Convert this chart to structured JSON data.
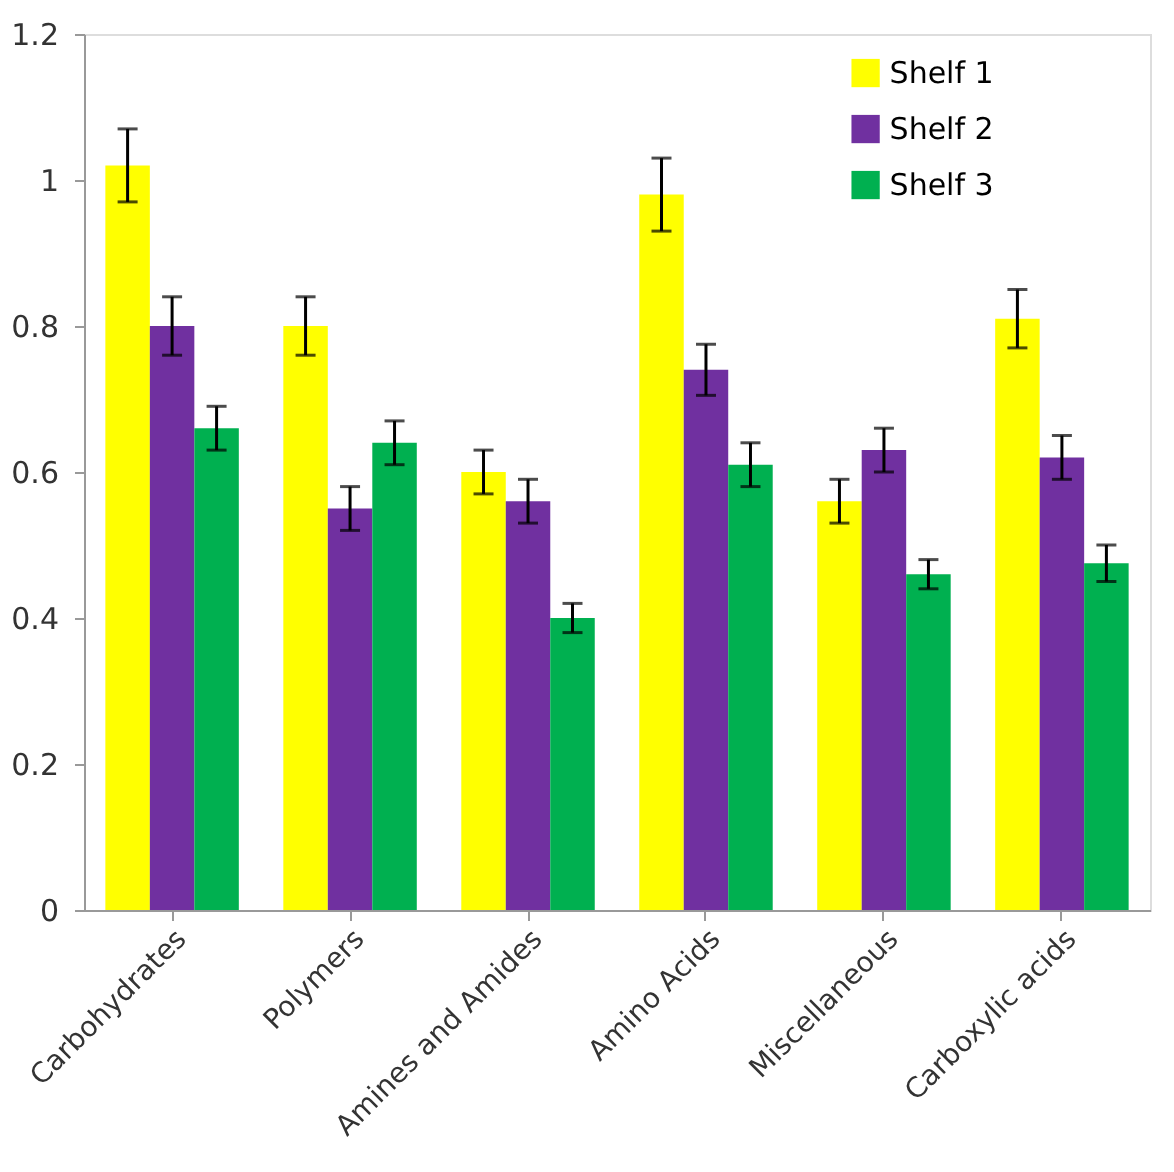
{
  "chart_data": {
    "type": "bar",
    "categories": [
      "Carbohydrates",
      "Polymers",
      "Amines and Amides",
      "Amino Acids",
      "Miscellaneous",
      "Carboxylic acids"
    ],
    "series": [
      {
        "name": "Shelf 1",
        "color": "#ffff00",
        "values": [
          1.02,
          0.8,
          0.6,
          0.98,
          0.56,
          0.81
        ],
        "errors": [
          0.05,
          0.04,
          0.03,
          0.05,
          0.03,
          0.04
        ]
      },
      {
        "name": "Shelf 2",
        "color": "#7030a0",
        "values": [
          0.8,
          0.55,
          0.56,
          0.74,
          0.63,
          0.62
        ],
        "errors": [
          0.04,
          0.03,
          0.03,
          0.035,
          0.03,
          0.03
        ]
      },
      {
        "name": "Shelf 3",
        "color": "#00b050",
        "values": [
          0.66,
          0.64,
          0.4,
          0.61,
          0.46,
          0.475
        ],
        "errors": [
          0.03,
          0.03,
          0.02,
          0.03,
          0.02,
          0.025
        ]
      }
    ],
    "ylim": [
      0,
      1.2
    ],
    "yticks": [
      0,
      0.2,
      0.4,
      0.6,
      0.8,
      1,
      1.2
    ],
    "grid": false,
    "legend": "top right"
  }
}
